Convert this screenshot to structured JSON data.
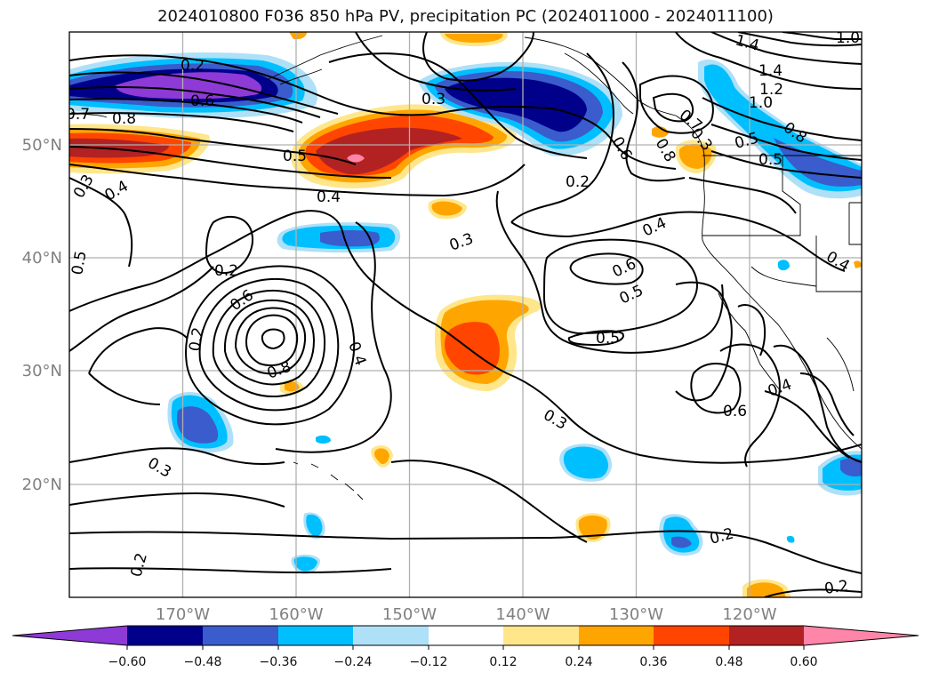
{
  "title": "2024010800 F036 850 hPa PV, precipitation PC (2024011000 - 2024011100)",
  "lon_ticks": [
    "170°W",
    "160°W",
    "150°W",
    "140°W",
    "130°W",
    "120°W"
  ],
  "lat_ticks": [
    "50°N",
    "40°N",
    "30°N",
    "20°N"
  ],
  "colorbar": {
    "colors": [
      "#8e3ad6",
      "#00008b",
      "#3a5ccc",
      "#00bfff",
      "#aee0f8",
      "#ffffff",
      "#ffe68a",
      "#ffa500",
      "#ff4500",
      "#b22222",
      "#ff85a9"
    ],
    "tick_labels": [
      "−0.60",
      "−0.48",
      "−0.36",
      "−0.24",
      "−0.12",
      "0.12",
      "0.24",
      "0.36",
      "0.48",
      "0.60"
    ]
  },
  "contour_labels": [
    {
      "id": "c1",
      "text": "0.2"
    },
    {
      "id": "c2",
      "text": "0.6"
    },
    {
      "id": "c3",
      "text": "0.7"
    },
    {
      "id": "c4",
      "text": "0.8"
    },
    {
      "id": "c5",
      "text": "0.3"
    },
    {
      "id": "c6",
      "text": "0.4"
    },
    {
      "id": "c7",
      "text": "0.5"
    },
    {
      "id": "c8",
      "text": "0.4"
    },
    {
      "id": "c9",
      "text": "0.3"
    },
    {
      "id": "c10",
      "text": "0.2"
    },
    {
      "id": "c11",
      "text": "0.5"
    },
    {
      "id": "c12",
      "text": "0.2"
    },
    {
      "id": "c13",
      "text": "0.6"
    },
    {
      "id": "c14",
      "text": "0.4"
    },
    {
      "id": "c15",
      "text": "0.8"
    },
    {
      "id": "c16",
      "text": "0.3"
    },
    {
      "id": "c17",
      "text": "0.2"
    },
    {
      "id": "c18",
      "text": "0.3"
    },
    {
      "id": "c19",
      "text": "0.3"
    },
    {
      "id": "c20",
      "text": "0.5"
    },
    {
      "id": "c21",
      "text": "0.6"
    },
    {
      "id": "c22",
      "text": "0.4"
    },
    {
      "id": "c23",
      "text": "0.5"
    },
    {
      "id": "c24",
      "text": "0.2"
    },
    {
      "id": "c25",
      "text": "0.6"
    },
    {
      "id": "c26",
      "text": "0.8"
    },
    {
      "id": "c27",
      "text": "1.4"
    },
    {
      "id": "c28",
      "text": "1.2"
    },
    {
      "id": "c29",
      "text": "1.0"
    },
    {
      "id": "c30",
      "text": "0.8"
    },
    {
      "id": "c31",
      "text": "0.5"
    },
    {
      "id": "c32",
      "text": "0.5"
    },
    {
      "id": "c33",
      "text": "0.4"
    },
    {
      "id": "c34",
      "text": "0.6"
    },
    {
      "id": "c35",
      "text": "0.4"
    },
    {
      "id": "c36",
      "text": "0.2"
    },
    {
      "id": "c37",
      "text": "0.2"
    },
    {
      "id": "c38",
      "text": "0.3"
    },
    {
      "id": "c39",
      "text": "1.0"
    },
    {
      "id": "c40",
      "text": "1.4"
    },
    {
      "id": "c41",
      "text": "0.7"
    }
  ]
}
